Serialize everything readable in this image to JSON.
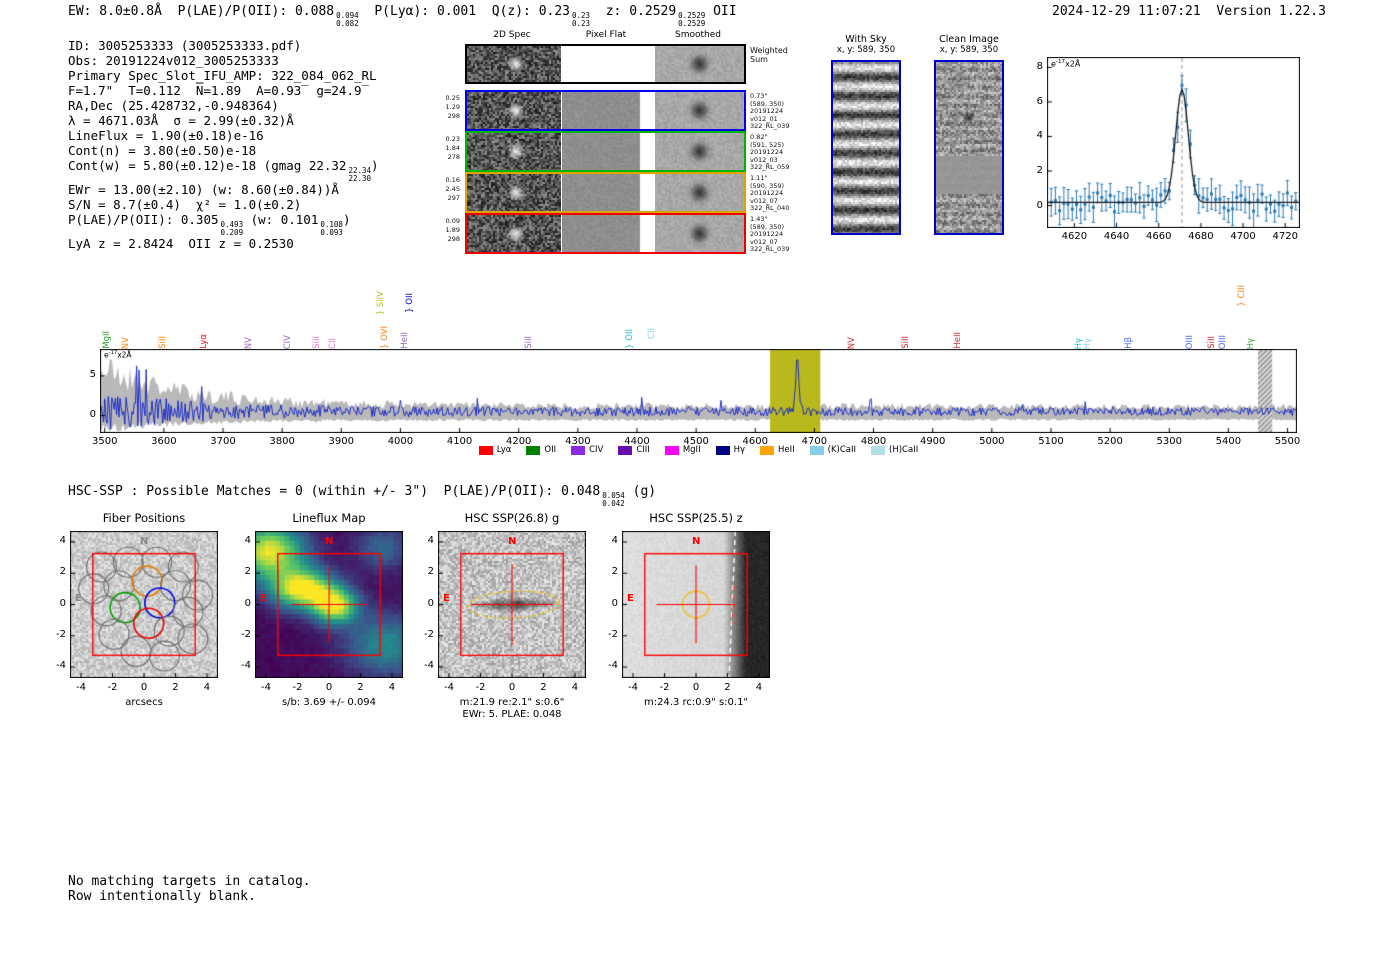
{
  "meta": {
    "timestamp": "2024-12-29 11:07:21",
    "version": "Version 1.22.3"
  },
  "header_line": [
    {
      "t": "EW: 8.0±0.8Å  P(LAE)/P(OII): 0.088"
    },
    {
      "frac": [
        "0.094",
        "0.082"
      ]
    },
    {
      "t": "  P(Lyα): 0.001  Q(z): 0.23"
    },
    {
      "frac": [
        "0.23",
        "0.23"
      ]
    },
    {
      "t": "  z: 0.2529"
    },
    {
      "frac": [
        "0.2529",
        "0.2529"
      ]
    },
    {
      "t": " OII"
    }
  ],
  "info_lines": [
    [
      {
        "t": "ID: 3005253333 (3005253333.pdf)"
      }
    ],
    [
      {
        "t": "Obs: 20191224v012_3005253333"
      }
    ],
    [
      {
        "t": "Primary Spec_Slot_IFU_AMP: 322_084_062_RL"
      }
    ],
    [
      {
        "t": "F=1.7\"  T=0.112  N̅=1.89  A=0.93̅  g=24.9̅"
      }
    ],
    [
      {
        "t": "RA,Dec (25.428732,-0.948364)"
      }
    ],
    [
      {
        "t": "λ = 4671.03Å  σ = 2.99(±0.32)Å"
      }
    ],
    [
      {
        "t": "LineFlux = 1.90(±0.18)e-16"
      }
    ],
    [
      {
        "t": "Cont(n) = 3.80(±0.50)e-18"
      }
    ],
    [
      {
        "t": "Cont(w) = 5.80(±0.12)e-18 (gmag 22.32"
      },
      {
        "frac": [
          "22.34",
          "22.30"
        ]
      },
      {
        "t": ")"
      }
    ],
    [
      {
        "t": "EWr = 13.00(±2.10) (w: 8.60(±0.84))Å"
      }
    ],
    [
      {
        "t": "S/N = 8.7(±0.4)  χ² = 1.0(±0.2)"
      }
    ],
    [
      {
        "t": "P(LAE)/P(OII): 0.305"
      },
      {
        "frac": [
          "0.493",
          "0.209"
        ]
      },
      {
        "t": " (w: 0.101"
      },
      {
        "frac": [
          "0.108",
          "0.093"
        ]
      },
      {
        "t": ")"
      }
    ],
    [
      {
        "t": "LyA z = 2.8424  OII z = 0.2530"
      }
    ]
  ],
  "cutouts": {
    "col_titles": [
      "2D Spec",
      "Pixel Flat",
      "Smoothed"
    ],
    "rows": [
      {
        "border": "#000000",
        "left_vals": [],
        "right_lines": [
          "Weighted",
          "Sum"
        ]
      },
      {
        "border": "#0000ee",
        "left_vals": [
          "0.25",
          "1.29",
          "298"
        ],
        "right_lines": [
          "0.73\"",
          "(589, 350)",
          "20191224",
          "v012_01",
          "322_RL_039"
        ]
      },
      {
        "border": "#00b400",
        "left_vals": [
          "0.23",
          "1.84",
          "278"
        ],
        "right_lines": [
          "0.82\"",
          "(591, 525)",
          "20191224",
          "v012_03",
          "322_RL_059"
        ]
      },
      {
        "border": "#dfa300",
        "left_vals": [
          "0.16",
          "2.45",
          "297"
        ],
        "right_lines": [
          "1.11\"",
          "(590, 359)",
          "20191224",
          "v012_07",
          "322_RL_040"
        ]
      },
      {
        "border": "#ee0000",
        "left_vals": [
          "0.09",
          "1.89",
          "298"
        ],
        "right_lines": [
          "1.43\"",
          "(589, 350)",
          "20191224",
          "v012_07",
          "322_RL_039"
        ]
      }
    ]
  },
  "sky_panels": [
    {
      "title": "With Sky",
      "subtitle": "x, y: 589, 350"
    },
    {
      "title": "Clean Image",
      "subtitle": "x, y: 589, 350"
    }
  ],
  "hsc_line": [
    {
      "t": "HSC-SSP : Possible Matches = 0 (within +/- 3\")  P(LAE)/P(OII): 0.048"
    },
    {
      "frac": [
        "0.054",
        "0.042"
      ]
    },
    {
      "t": " (g)"
    }
  ],
  "footer_lines": [
    "No matching targets in catalog.",
    "Row intentionally blank."
  ],
  "chart_data": [
    {
      "type": "scatter",
      "name": "emission-line-fit-zoom",
      "annotation": [
        {
          "t": "e"
        },
        {
          "sup": "-17"
        },
        {
          "t": "x2Å"
        }
      ],
      "xlim": [
        4607,
        4727
      ],
      "ylim": [
        -1.3,
        8.6
      ],
      "x_ticks": [
        4620,
        4640,
        4660,
        4680,
        4700,
        4720
      ],
      "y_ticks": [
        0,
        2,
        4,
        6,
        8
      ],
      "fit": {
        "kind": "gaussian",
        "center": 4671.03,
        "sigma": 2.99,
        "amplitude": 6.55,
        "continuum": 0.18
      },
      "data_description": "blue spectrum points every 2Å with ±0.5-1.0 error bars scattered about the continuum; peak reaches ~7 at 4671Å",
      "marker_line_x": 4671.03,
      "grid": false
    },
    {
      "type": "line",
      "name": "full-spectrum",
      "annotation": [
        {
          "t": "e"
        },
        {
          "sup": "-17"
        },
        {
          "t": "x2Å"
        }
      ],
      "xlim": [
        3492,
        5516
      ],
      "ylim": [
        -2.2,
        8.4
      ],
      "x_ticks": [
        3500,
        3600,
        3700,
        3800,
        3900,
        4000,
        4100,
        4200,
        4300,
        4400,
        4500,
        4600,
        4700,
        4800,
        4900,
        5000,
        5100,
        5200,
        5300,
        5400,
        5500
      ],
      "y_ticks": [
        0,
        5
      ],
      "continuum": 0.5,
      "emission_line": {
        "center": 4671.03,
        "amplitude": 6.3,
        "sigma": 3.0
      },
      "noise_envelope": "gray error band ~±6 at 3500Å decaying to ~±1.2 at 5500Å",
      "highlight_band": [
        4625,
        4710
      ],
      "masked_band": [
        5450,
        5474
      ],
      "line_labels": [
        {
          "label": "MgII",
          "x": 3505,
          "color": "#2ca02c",
          "raise": 0
        },
        {
          "label": "NV",
          "x": 3537,
          "color": "#ff7f0e",
          "raise": 0
        },
        {
          "label": "SiII",
          "x": 3600,
          "color": "#ff7f0e",
          "raise": 0
        },
        {
          "label": "Lyα",
          "x": 3670,
          "color": "#ff0000",
          "raise": 0
        },
        {
          "label": "NV",
          "x": 3746,
          "color": "#9467bd",
          "raise": 0
        },
        {
          "label": "CIV",
          "x": 3812,
          "color": "#9467bd",
          "raise": 0
        },
        {
          "label": "SiII",
          "x": 3860,
          "color": "#e377c2",
          "raise": 0
        },
        {
          "label": "CII",
          "x": 3888,
          "color": "#e377c2",
          "raise": 0
        },
        {
          "label": "} OVI",
          "x": 3976,
          "color": "#ff7f0e",
          "raise": 0
        },
        {
          "label": "} SiIV",
          "x": 3968,
          "color": "#bcbd22",
          "raise": 34
        },
        {
          "label": "HeII",
          "x": 4010,
          "color": "#9467bd",
          "raise": 0
        },
        {
          "label": "} OII",
          "x": 4018,
          "color": "#0000cd",
          "raise": 36
        },
        {
          "label": "SiII",
          "x": 4219,
          "color": "#9467bd",
          "raise": 0
        },
        {
          "label": "} OII",
          "x": 4390,
          "color": "#17becf",
          "raise": 0
        },
        {
          "label": "CII",
          "x": 4427,
          "color": "#87ceeb",
          "raise": 10
        },
        {
          "label": "NV",
          "x": 4766,
          "color": "#d62728",
          "raise": 0
        },
        {
          "label": "SiII",
          "x": 4856,
          "color": "#d62728",
          "raise": 0
        },
        {
          "label": "HeII",
          "x": 4944,
          "color": "#d62728",
          "raise": 0
        },
        {
          "label": "Hγ",
          "x": 5149,
          "color": "#17becf",
          "raise": 0
        },
        {
          "label": "Hγ",
          "x": 5165,
          "color": "#87cefa",
          "raise": 0
        },
        {
          "label": "Hβ",
          "x": 5234,
          "color": "#4169e1",
          "raise": 0
        },
        {
          "label": "OIII",
          "x": 5336,
          "color": "#4169e1",
          "raise": 0
        },
        {
          "label": "SiII",
          "x": 5374,
          "color": "#d62728",
          "raise": 0
        },
        {
          "label": "OIII",
          "x": 5393,
          "color": "#4169e1",
          "raise": 0
        },
        {
          "label": "} CIII",
          "x": 5424,
          "color": "#ff7f0e",
          "raise": 42
        },
        {
          "label": "Hγ",
          "x": 5440,
          "color": "#2ca02c",
          "raise": 0
        }
      ],
      "legend": [
        {
          "label": "Lyα",
          "color": "#ff0000"
        },
        {
          "label": "OII",
          "color": "#008000"
        },
        {
          "label": "CIV",
          "color": "#8a2be2"
        },
        {
          "label": "CIII",
          "color": "#6a0dad"
        },
        {
          "label": "MgII",
          "color": "#ff00ff"
        },
        {
          "label": "Hγ",
          "color": "#000080"
        },
        {
          "label": "HeII",
          "color": "#ffa500"
        },
        {
          "label": "(K)CaII",
          "color": "#87ceeb"
        },
        {
          "label": "(H)CaII",
          "color": "#b0e0e6"
        }
      ]
    },
    {
      "type": "image",
      "kind": "fibers",
      "title": "Fiber Positions",
      "xlabel": "arcsecs",
      "xlabel2": "",
      "xlim": [
        -4.7,
        4.7
      ],
      "ylim": [
        -4.7,
        4.7
      ],
      "x_ticks": [
        -4,
        -2,
        0,
        2,
        4
      ],
      "y_ticks": [
        4,
        2,
        0,
        -2,
        -4
      ],
      "compass": {
        "n": "N",
        "e": "E",
        "color": "#8a8a8a"
      },
      "box_arcsec": 3.25,
      "fiber_radius": 0.95,
      "fibers": [
        {
          "x": -2.7,
          "y": 2.4
        },
        {
          "x": -1.0,
          "y": 2.7
        },
        {
          "x": 0.8,
          "y": 2.7
        },
        {
          "x": 2.5,
          "y": 2.4
        },
        {
          "x": -3.2,
          "y": 1.0
        },
        {
          "x": -1.6,
          "y": 1.2
        },
        {
          "x": 0.2,
          "y": 1.5,
          "color": "#e08000"
        },
        {
          "x": 2.0,
          "y": 1.2
        },
        {
          "x": 3.4,
          "y": 0.6
        },
        {
          "x": -2.4,
          "y": -0.4
        },
        {
          "x": -1.2,
          "y": -0.2,
          "color": "#00a000"
        },
        {
          "x": 1.0,
          "y": 0.1,
          "color": "#0000ee"
        },
        {
          "x": 2.8,
          "y": -0.5
        },
        {
          "x": -1.9,
          "y": -1.9
        },
        {
          "x": 0.3,
          "y": -1.2,
          "color": "#ee0000"
        },
        {
          "x": 1.6,
          "y": -1.7
        },
        {
          "x": 3.1,
          "y": -2.2
        },
        {
          "x": -0.5,
          "y": -3.0
        },
        {
          "x": 1.3,
          "y": -3.3
        }
      ]
    },
    {
      "type": "heatmap",
      "kind": "heatmap",
      "title": "Lineflux Map",
      "xlabel": "s/b: 3.69 +/- 0.094",
      "xlabel2": "",
      "xlim": [
        -4.7,
        4.7
      ],
      "ylim": [
        -4.7,
        4.7
      ],
      "x_ticks": [
        -4,
        -2,
        0,
        2,
        4
      ],
      "y_ticks": [
        4,
        2,
        0,
        -2,
        -4
      ],
      "compass": {
        "n": "N",
        "e": "E",
        "color": "#ff0000"
      },
      "box_arcsec": 3.25,
      "colormap": "viridis",
      "base": 0.03,
      "blobs": [
        {
          "x": -1.7,
          "y": 1.0,
          "sx": 1.4,
          "sy": 0.9,
          "a": 1.0
        },
        {
          "x": 0.4,
          "y": -0.1,
          "sx": 1.0,
          "sy": 0.8,
          "a": 0.9
        },
        {
          "x": -3.8,
          "y": 3.4,
          "sx": 1.6,
          "sy": 1.2,
          "a": 0.95
        },
        {
          "x": 3.6,
          "y": -2.6,
          "sx": 1.8,
          "sy": 1.4,
          "a": 0.45
        },
        {
          "x": 3.4,
          "y": 3.6,
          "sx": 1.2,
          "sy": 1.0,
          "a": 0.3
        }
      ]
    },
    {
      "type": "image",
      "kind": "galaxy",
      "title": "HSC SSP(26.8) g",
      "xlabel": "m:21.9 re:2.1\" s:0.6\"",
      "xlabel2": "EWr: 5. PLAE: 0.048",
      "xlim": [
        -4.7,
        4.7
      ],
      "ylim": [
        -4.7,
        4.7
      ],
      "x_ticks": [
        -4,
        -2,
        0,
        2,
        4
      ],
      "y_ticks": [
        4,
        2,
        0,
        -2,
        -4
      ],
      "compass": {
        "n": "N",
        "e": "E",
        "color": "#ff0000"
      },
      "box_arcsec": 3.25,
      "ellipse": {
        "cx": 0.1,
        "cy": 0,
        "rx": 2.9,
        "ry": 0.85,
        "color": "#e8c430"
      }
    },
    {
      "type": "image",
      "kind": "gradient",
      "title": "HSC SSP(25.5) z",
      "xlabel": "m:24.3 rc:0.9\" s:0.1\"",
      "xlabel2": "",
      "xlim": [
        -4.7,
        4.7
      ],
      "ylim": [
        -4.7,
        4.7
      ],
      "x_ticks": [
        -4,
        -2,
        0,
        2,
        4
      ],
      "y_ticks": [
        4,
        2,
        0,
        -2,
        -4
      ],
      "compass": {
        "n": "N",
        "e": "E",
        "color": "#ff0000"
      },
      "box_arcsec": 3.25,
      "edge_x": 2.3,
      "circle": {
        "cx": 0,
        "cy": 0,
        "r": 0.85,
        "color": "#e8c430"
      }
    }
  ]
}
